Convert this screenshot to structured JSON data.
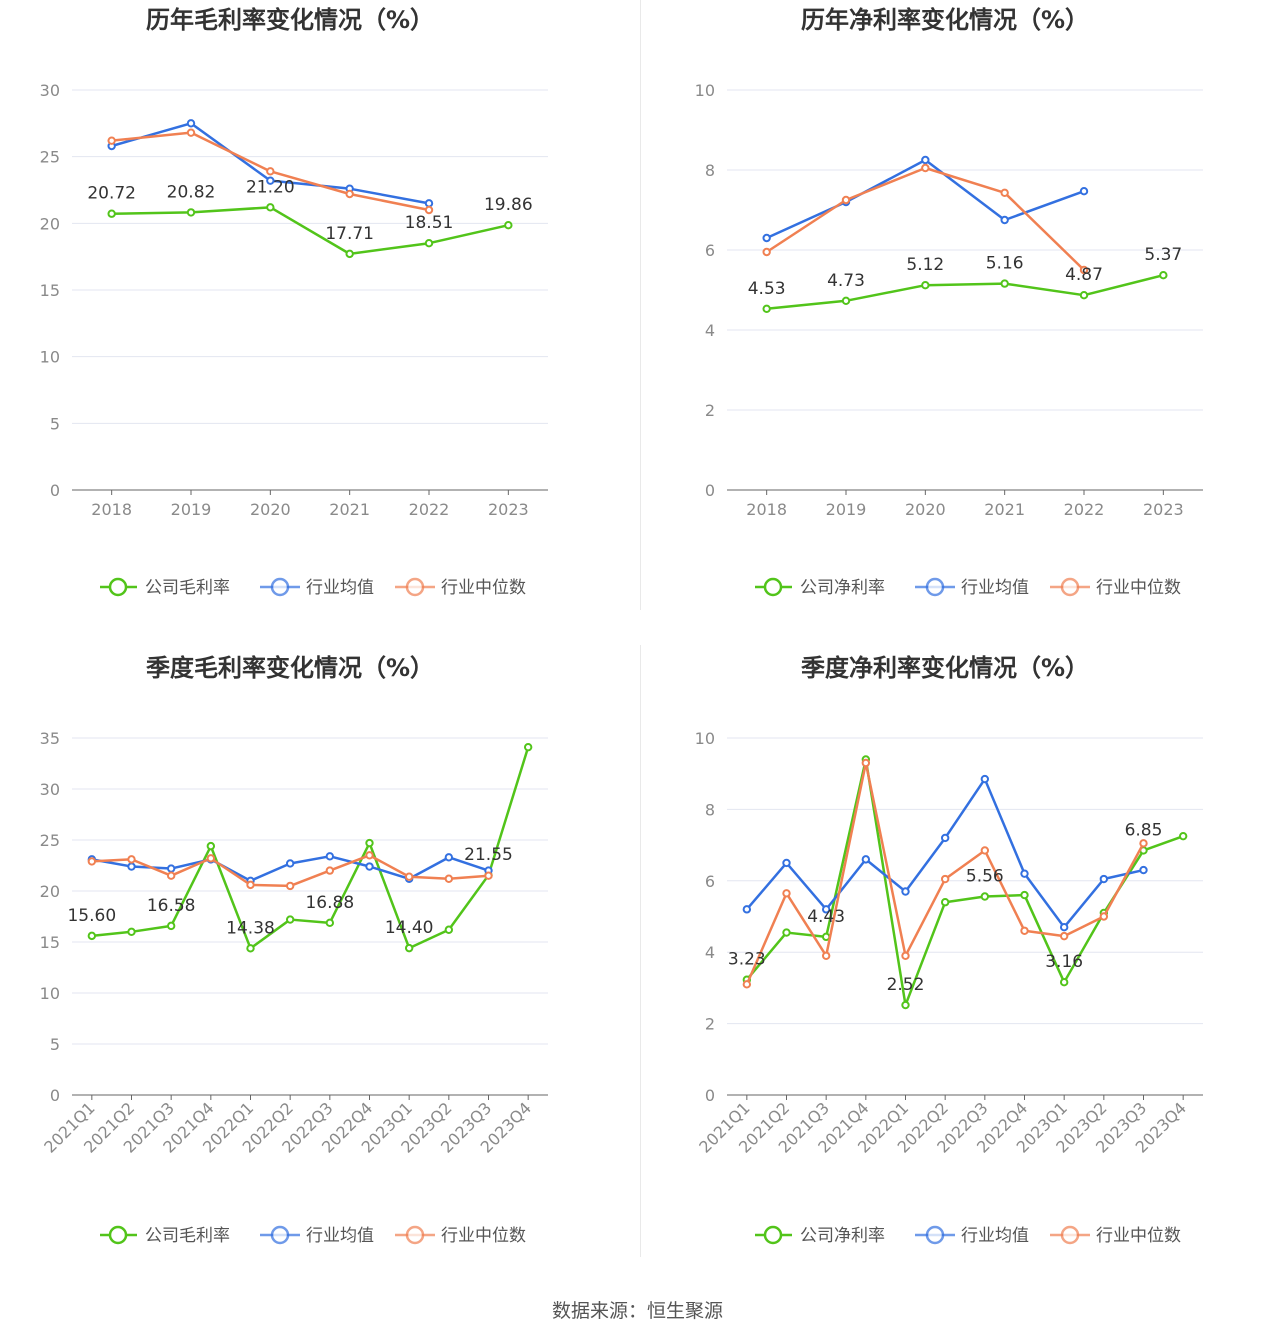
{
  "colors": {
    "company": "#52c41a",
    "avg": "#3370e0",
    "median": "#f08052",
    "grid": "#e3e6f0",
    "axis": "#666666"
  },
  "chart_data": [
    {
      "type": "line",
      "title": "历年毛利率变化情况（%）",
      "categories": [
        "2018",
        "2019",
        "2020",
        "2021",
        "2022",
        "2023"
      ],
      "ylim": [
        0,
        30
      ],
      "yticks": [
        0,
        5,
        10,
        15,
        20,
        25,
        30
      ],
      "series": [
        {
          "name": "公司毛利率",
          "role": "company",
          "values": [
            20.72,
            20.82,
            21.2,
            17.71,
            18.51,
            19.86
          ],
          "labels": [
            "20.72",
            "20.82",
            "21.20",
            "17.71",
            "18.51",
            "19.86"
          ]
        },
        {
          "name": "行业均值",
          "role": "avg",
          "values": [
            25.8,
            27.5,
            23.2,
            22.6,
            21.5,
            null
          ]
        },
        {
          "name": "行业中位数",
          "role": "median",
          "values": [
            26.2,
            26.8,
            23.9,
            22.2,
            21.0,
            null
          ]
        }
      ]
    },
    {
      "type": "line",
      "title": "历年净利率变化情况（%）",
      "categories": [
        "2018",
        "2019",
        "2020",
        "2021",
        "2022",
        "2023"
      ],
      "ylim": [
        0,
        10
      ],
      "yticks": [
        0,
        2,
        4,
        6,
        8,
        10
      ],
      "series": [
        {
          "name": "公司净利率",
          "role": "company",
          "values": [
            4.53,
            4.73,
            5.12,
            5.16,
            4.87,
            5.37
          ],
          "labels": [
            "4.53",
            "4.73",
            "5.12",
            "5.16",
            "4.87",
            "5.37"
          ]
        },
        {
          "name": "行业均值",
          "role": "avg",
          "values": [
            6.3,
            7.2,
            8.25,
            6.75,
            7.47,
            null
          ]
        },
        {
          "name": "行业中位数",
          "role": "median",
          "values": [
            5.95,
            7.25,
            8.05,
            7.43,
            5.5,
            null
          ]
        }
      ]
    },
    {
      "type": "line",
      "title": "季度毛利率变化情况（%）",
      "categories": [
        "2021Q1",
        "2021Q2",
        "2021Q3",
        "2021Q4",
        "2022Q1",
        "2022Q2",
        "2022Q3",
        "2022Q4",
        "2023Q1",
        "2023Q2",
        "2023Q3",
        "2023Q4"
      ],
      "ylim": [
        0,
        35
      ],
      "yticks": [
        0,
        5,
        10,
        15,
        20,
        25,
        30,
        35
      ],
      "series": [
        {
          "name": "公司毛利率",
          "role": "company",
          "values": [
            15.6,
            16.0,
            16.58,
            24.4,
            14.38,
            17.2,
            16.88,
            24.7,
            14.4,
            16.2,
            21.55,
            34.1
          ],
          "labels": [
            "15.60",
            "",
            "16.58",
            "",
            "14.38",
            "",
            "16.88",
            "",
            "14.40",
            "",
            "21.55",
            ""
          ]
        },
        {
          "name": "行业均值",
          "role": "avg",
          "values": [
            23.1,
            22.4,
            22.2,
            23.1,
            21.0,
            22.7,
            23.4,
            22.4,
            21.2,
            23.3,
            22.0,
            null
          ]
        },
        {
          "name": "行业中位数",
          "role": "median",
          "values": [
            22.9,
            23.1,
            21.5,
            23.2,
            20.6,
            20.5,
            22.0,
            23.5,
            21.4,
            21.2,
            21.5,
            null
          ]
        }
      ]
    },
    {
      "type": "line",
      "title": "季度净利率变化情况（%）",
      "categories": [
        "2021Q1",
        "2021Q2",
        "2021Q3",
        "2021Q4",
        "2022Q1",
        "2022Q2",
        "2022Q3",
        "2022Q4",
        "2023Q1",
        "2023Q2",
        "2023Q3",
        "2023Q4"
      ],
      "ylim": [
        0,
        10
      ],
      "yticks": [
        0,
        2,
        4,
        6,
        8,
        10
      ],
      "series": [
        {
          "name": "公司净利率",
          "role": "company",
          "values": [
            3.23,
            4.55,
            4.43,
            9.4,
            2.52,
            5.4,
            5.56,
            5.6,
            3.16,
            5.1,
            6.85,
            7.25
          ],
          "labels": [
            "3.23",
            "",
            "4.43",
            "",
            "2.52",
            "",
            "5.56",
            "",
            "3.16",
            "",
            "6.85",
            ""
          ]
        },
        {
          "name": "行业均值",
          "role": "avg",
          "values": [
            5.2,
            6.5,
            5.2,
            6.6,
            5.7,
            7.2,
            8.85,
            6.2,
            4.7,
            6.05,
            6.3,
            null
          ]
        },
        {
          "name": "行业中位数",
          "role": "median",
          "values": [
            3.1,
            5.65,
            3.9,
            9.3,
            3.9,
            6.05,
            6.85,
            4.6,
            4.45,
            5.0,
            7.05,
            null
          ]
        }
      ]
    }
  ],
  "footer": "数据来源：恒生聚源"
}
